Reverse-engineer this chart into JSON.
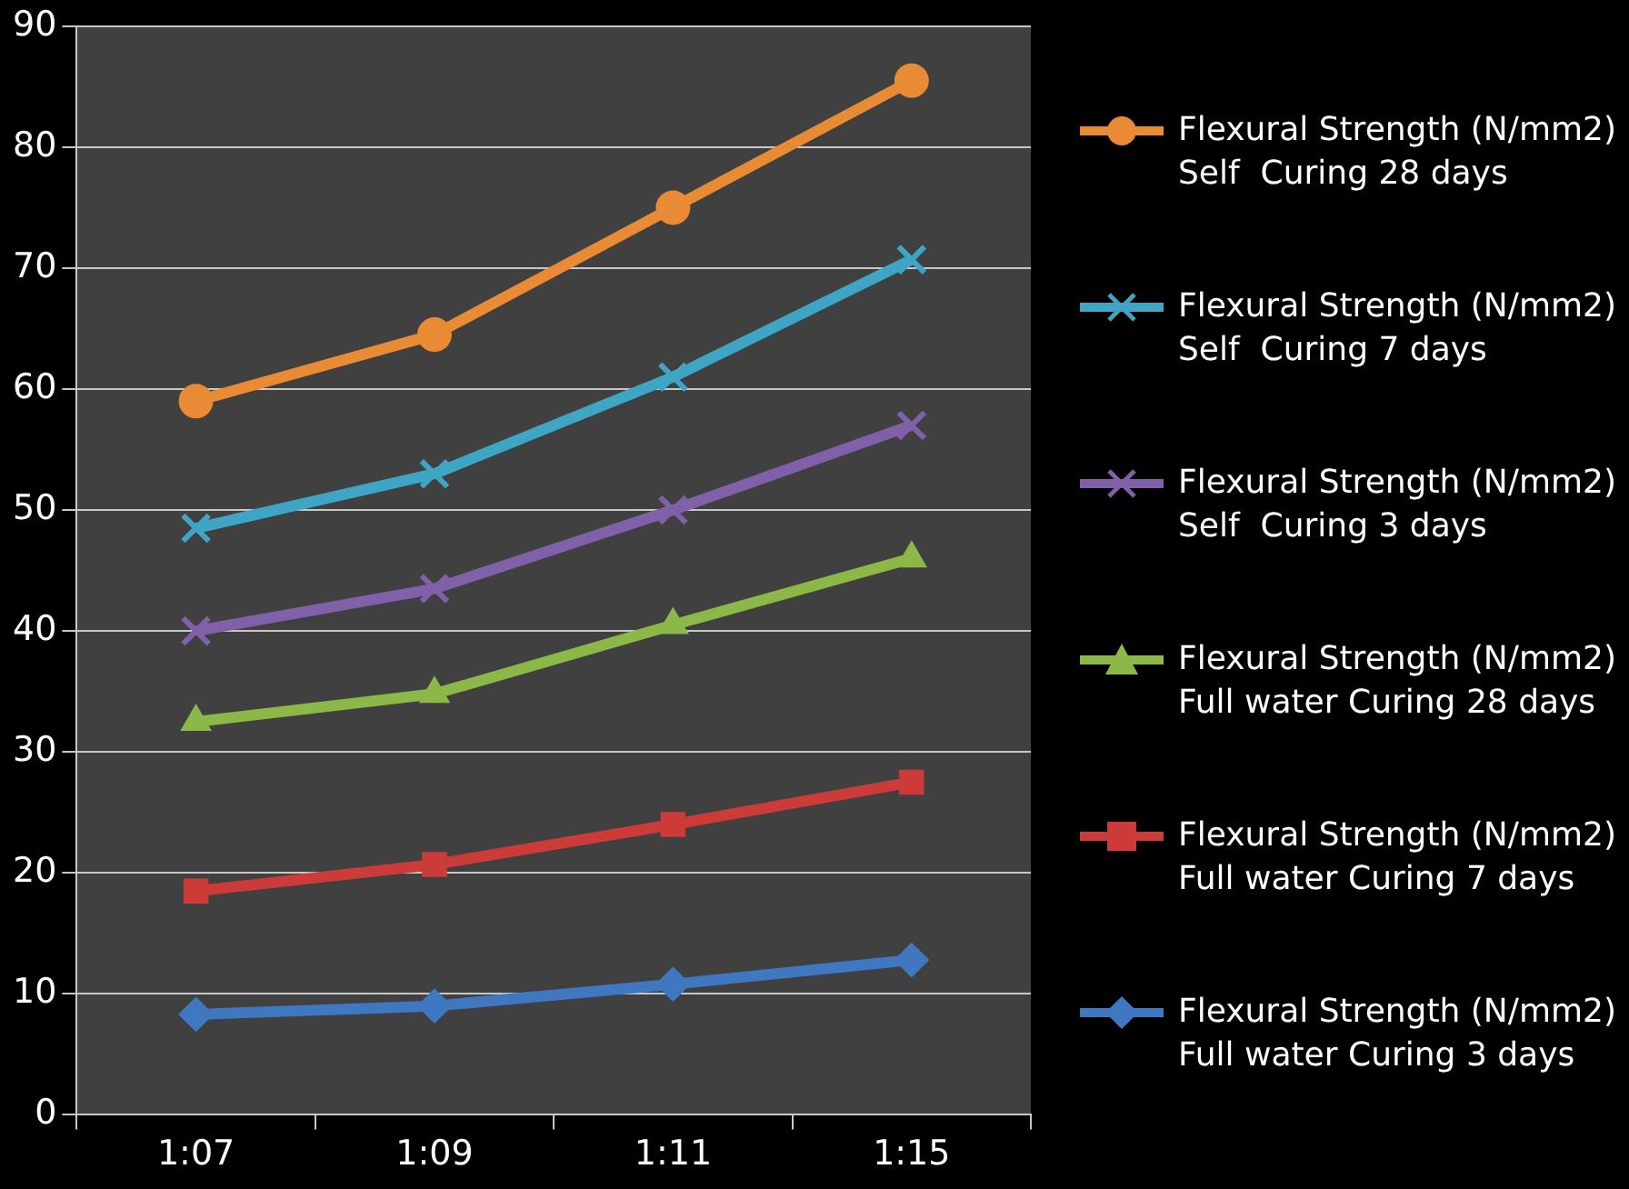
{
  "chart_data": {
    "type": "line",
    "categories": [
      "1:07",
      "1:09",
      "1:11",
      "1:15"
    ],
    "ylim": [
      0,
      90
    ],
    "yticks": [
      0,
      10,
      20,
      30,
      40,
      50,
      60,
      70,
      80,
      90
    ],
    "grid": "y",
    "legend": "right",
    "line_style": "solid",
    "series": [
      {
        "name": "Flexural Strength (N/mm2) Self  Curing 28 days",
        "color": "#e98a35",
        "marker": "circle",
        "values": [
          59,
          64.5,
          75,
          85.5
        ]
      },
      {
        "name": "Flexural Strength (N/mm2) Self  Curing 7 days",
        "color": "#3fa5c4",
        "marker": "cross",
        "values": [
          48.5,
          53,
          61,
          70.7
        ]
      },
      {
        "name": "Flexural Strength (N/mm2) Self  Curing 3 days",
        "color": "#8060a8",
        "marker": "cross",
        "values": [
          40,
          43.5,
          50,
          57
        ]
      },
      {
        "name": "Flexural Strength (N/mm2) Full water Curing 28 days",
        "color": "#8cb848",
        "marker": "triangle",
        "values": [
          32.5,
          34.8,
          40.5,
          46
        ]
      },
      {
        "name": "Flexural Strength (N/mm2) Full water Curing 7 days",
        "color": "#cc3b38",
        "marker": "square",
        "values": [
          18.5,
          20.7,
          24,
          27.5
        ]
      },
      {
        "name": "Flexural Strength (N/mm2) Full water Curing 3 days",
        "color": "#3f78c0",
        "marker": "diamond",
        "values": [
          8.3,
          9,
          10.8,
          12.8
        ]
      }
    ]
  }
}
